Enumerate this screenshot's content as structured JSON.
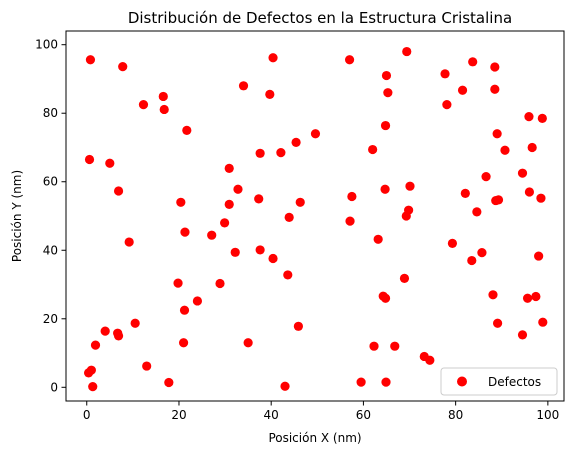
{
  "chart_data": {
    "type": "scatter",
    "title": "Distribución de Defectos en la Estructura Cristalina",
    "xlabel": "Posición X (nm)",
    "ylabel": "Posición Y (nm)",
    "xlim": [
      -4.5,
      103.5
    ],
    "ylim": [
      -4,
      104
    ],
    "xticks": [
      0,
      20,
      40,
      60,
      80,
      100
    ],
    "yticks": [
      0,
      20,
      40,
      60,
      80,
      100
    ],
    "grid": false,
    "legend_position": "lower-right",
    "marker_color": "#ff0000",
    "series": [
      {
        "name": "Defectos",
        "points": [
          [
            0.8,
            95.6
          ],
          [
            7.8,
            93.6
          ],
          [
            16.6,
            84.9
          ],
          [
            12.3,
            82.5
          ],
          [
            16.8,
            81.1
          ],
          [
            21.7,
            75.0
          ],
          [
            34.0,
            88.0
          ],
          [
            39.7,
            85.5
          ],
          [
            40.4,
            96.2
          ],
          [
            57.0,
            95.6
          ],
          [
            65.0,
            91.0
          ],
          [
            65.3,
            86.0
          ],
          [
            64.8,
            76.4
          ],
          [
            69.4,
            98.0
          ],
          [
            77.7,
            91.5
          ],
          [
            78.1,
            82.5
          ],
          [
            81.5,
            86.7
          ],
          [
            83.7,
            95.0
          ],
          [
            88.5,
            93.5
          ],
          [
            88.5,
            87.0
          ],
          [
            95.9,
            79.0
          ],
          [
            98.8,
            78.5
          ],
          [
            89.0,
            74.0
          ],
          [
            90.7,
            69.2
          ],
          [
            96.6,
            70.0
          ],
          [
            94.5,
            62.5
          ],
          [
            0.6,
            66.5
          ],
          [
            5.0,
            65.4
          ],
          [
            6.9,
            57.3
          ],
          [
            30.9,
            63.9
          ],
          [
            37.6,
            68.3
          ],
          [
            42.1,
            68.5
          ],
          [
            45.4,
            71.5
          ],
          [
            49.6,
            74.0
          ],
          [
            62.0,
            69.4
          ],
          [
            20.4,
            54.0
          ],
          [
            21.3,
            45.3
          ],
          [
            30.9,
            53.4
          ],
          [
            32.8,
            57.8
          ],
          [
            37.3,
            55.0
          ],
          [
            46.3,
            54.0
          ],
          [
            27.1,
            44.4
          ],
          [
            29.9,
            48.0
          ],
          [
            43.9,
            49.6
          ],
          [
            57.5,
            55.7
          ],
          [
            57.1,
            48.5
          ],
          [
            64.7,
            57.8
          ],
          [
            70.1,
            58.7
          ],
          [
            69.3,
            50.0
          ],
          [
            69.8,
            51.7
          ],
          [
            82.1,
            56.6
          ],
          [
            84.6,
            51.2
          ],
          [
            86.6,
            61.5
          ],
          [
            88.7,
            54.5
          ],
          [
            89.3,
            54.7
          ],
          [
            96.0,
            57.0
          ],
          [
            98.5,
            55.2
          ],
          [
            9.2,
            42.4
          ],
          [
            32.2,
            39.4
          ],
          [
            37.6,
            40.1
          ],
          [
            40.4,
            37.6
          ],
          [
            43.6,
            32.8
          ],
          [
            63.2,
            43.2
          ],
          [
            79.3,
            42.0
          ],
          [
            83.5,
            37.0
          ],
          [
            85.7,
            39.3
          ],
          [
            98.0,
            38.3
          ],
          [
            19.8,
            30.4
          ],
          [
            28.9,
            30.3
          ],
          [
            68.9,
            31.8
          ],
          [
            21.2,
            22.5
          ],
          [
            24.0,
            25.2
          ],
          [
            64.3,
            26.6
          ],
          [
            64.8,
            26.0
          ],
          [
            88.1,
            27.0
          ],
          [
            95.6,
            26.0
          ],
          [
            97.4,
            26.5
          ],
          [
            4.0,
            16.4
          ],
          [
            6.7,
            15.8
          ],
          [
            6.9,
            15.0
          ],
          [
            10.5,
            18.7
          ],
          [
            45.9,
            17.8
          ],
          [
            89.1,
            18.7
          ],
          [
            94.5,
            15.3
          ],
          [
            98.9,
            19.0
          ],
          [
            1.9,
            12.3
          ],
          [
            13.0,
            6.2
          ],
          [
            21.0,
            13.0
          ],
          [
            35.0,
            13.0
          ],
          [
            62.3,
            12.0
          ],
          [
            66.8,
            12.0
          ],
          [
            73.2,
            9.0
          ],
          [
            74.4,
            7.9
          ],
          [
            0.4,
            4.2
          ],
          [
            1.0,
            5.0
          ],
          [
            1.3,
            0.2
          ],
          [
            17.8,
            1.4
          ],
          [
            43.0,
            0.3
          ],
          [
            59.5,
            1.5
          ],
          [
            64.9,
            1.5
          ]
        ]
      }
    ]
  }
}
